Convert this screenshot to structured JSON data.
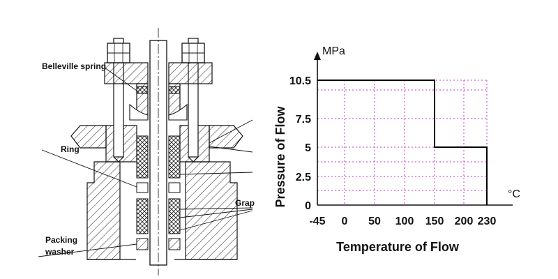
{
  "diagram": {
    "labels": {
      "belleville_spring": "Belleville spring",
      "ring": "Ring",
      "graphite": "Grap",
      "packing_line1": "Packing",
      "packing_line2": "washer"
    }
  },
  "chart_data": {
    "type": "line",
    "xlabel": "Temperature of Flow",
    "ylabel": "Pressure of Flow",
    "x_unit": "°C",
    "y_unit": "MPa",
    "x_ticks": [
      "-45",
      "0",
      "50",
      "100",
      "150",
      "200",
      "230"
    ],
    "y_ticks": [
      "0",
      "2.5",
      "5",
      "7.5",
      "10.5"
    ],
    "series": [
      {
        "x": [
          -45,
          150,
          150,
          230,
          230
        ],
        "y": [
          10.5,
          10.5,
          5,
          5,
          0
        ]
      }
    ],
    "grid": true,
    "grid_color": "#cc33cc",
    "line_color": "#000000"
  }
}
